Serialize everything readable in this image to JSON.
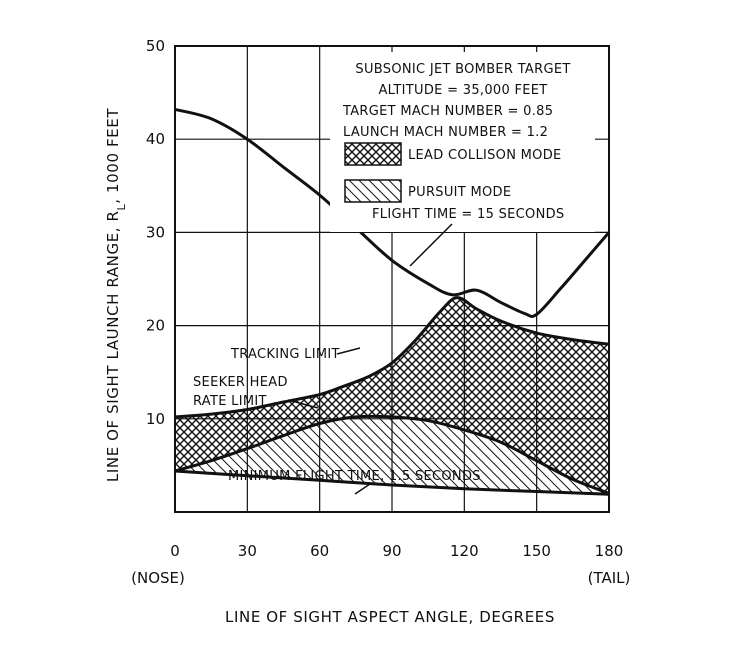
{
  "chart_data": {
    "type": "area",
    "title_block": {
      "target": "SUBSONIC JET BOMBER TARGET",
      "altitude": "ALTITUDE = 35,000 FEET",
      "target_mach": "TARGET MACH NUMBER = 0.85",
      "launch_mach": "LAUNCH MACH NUMBER = 1.2"
    },
    "xlabel": "LINE OF SIGHT ASPECT ANGLE, DEGREES",
    "ylabel": "LINE OF SIGHT LAUNCH RANGE, R",
    "ylabel_sub": "L",
    "ylabel_tail": ", 1000 FEET",
    "xlim": [
      0,
      180
    ],
    "ylim": [
      0,
      50
    ],
    "x_ticks": [
      0,
      30,
      60,
      90,
      120,
      150,
      180
    ],
    "y_ticks": [
      10,
      20,
      30,
      40,
      50
    ],
    "x_tick_notes": {
      "nose": "(NOSE)",
      "tail": "(TAIL)"
    },
    "grid": true,
    "legend": [
      {
        "label": "LEAD COLLISON MODE",
        "pattern": "crosshatch"
      },
      {
        "label": "PURSUIT MODE",
        "pattern": "diagonal"
      }
    ],
    "annotations": {
      "flight_time": "FLIGHT TIME = 15 SECONDS",
      "tracking_limit": "TRACKING LIMIT",
      "seeker_line1": "SEEKER HEAD",
      "seeker_line2": "RATE LIMIT",
      "min_flight_time": "MINIMUM FLIGHT TIME, 1.5 SECONDS"
    },
    "series": [
      {
        "name": "FLIGHT TIME = 15 SECONDS",
        "x": [
          0,
          15,
          30,
          45,
          60,
          75,
          90,
          105,
          115,
          125,
          135,
          145,
          150,
          160,
          170,
          180
        ],
        "y": [
          43.2,
          42.2,
          40,
          37,
          34,
          30.5,
          27,
          24.5,
          23.3,
          23.8,
          22.5,
          21.3,
          21.2,
          24,
          27,
          30
        ]
      },
      {
        "name": "TRACKING LIMIT",
        "x": [
          0,
          15,
          30,
          45,
          60,
          70,
          80,
          90,
          100,
          110,
          117,
          125,
          135,
          150,
          165,
          180
        ],
        "y": [
          10.2,
          10.5,
          11,
          11.8,
          12.6,
          13.5,
          14.5,
          16,
          18.5,
          21.5,
          23,
          21.8,
          20.5,
          19.2,
          18.5,
          18
        ]
      },
      {
        "name": "SEEKER HEAD RATE LIMIT",
        "x": [
          0,
          15,
          30,
          45,
          60,
          75,
          90,
          105,
          120,
          135,
          150,
          165,
          180
        ],
        "y": [
          4.4,
          5.5,
          6.8,
          8.2,
          9.5,
          10.2,
          10.2,
          9.8,
          8.8,
          7.5,
          5.5,
          3.5,
          2
        ]
      },
      {
        "name": "MINIMUM FLIGHT TIME, 1.5 SECONDS",
        "x": [
          0,
          30,
          60,
          90,
          120,
          150,
          180
        ],
        "y": [
          4.4,
          3.9,
          3.4,
          2.9,
          2.5,
          2.2,
          1.9
        ]
      }
    ]
  }
}
